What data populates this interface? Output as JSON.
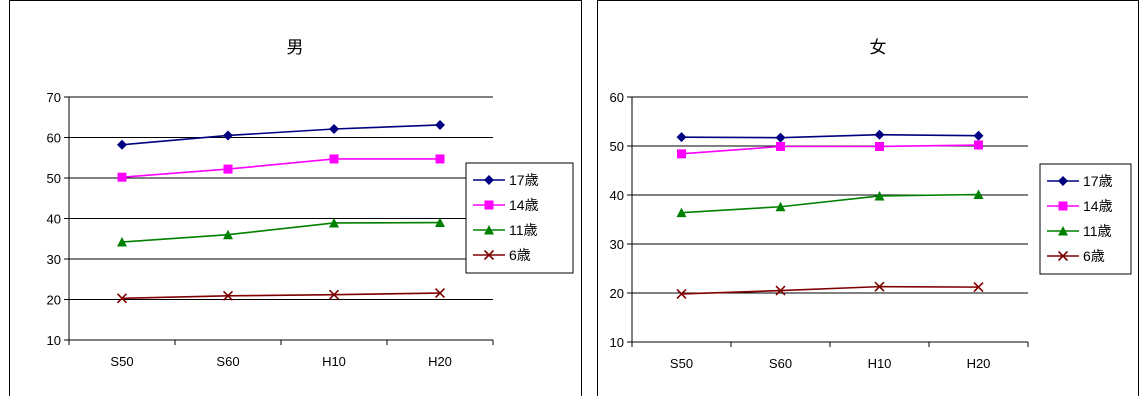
{
  "chart_data": [
    {
      "type": "line",
      "title": "男",
      "xlabel": "",
      "ylabel": "",
      "categories": [
        "S50",
        "S60",
        "H10",
        "H20"
      ],
      "ylim": [
        10,
        70
      ],
      "ytick_step": 10,
      "grid": true,
      "legend": "right",
      "series": [
        {
          "name": "17歳",
          "marker": "diamond",
          "color": "#000080",
          "values": [
            58.2,
            60.5,
            62.1,
            63.1
          ]
        },
        {
          "name": "14歳",
          "marker": "square",
          "color": "#FF00FF",
          "values": [
            50.2,
            52.2,
            54.7,
            54.7
          ]
        },
        {
          "name": "11歳",
          "marker": "triangle",
          "color": "#008000",
          "values": [
            34.2,
            36.0,
            38.9,
            39.0
          ]
        },
        {
          "name": "6歳",
          "marker": "x",
          "color": "#800000",
          "values": [
            20.3,
            20.9,
            21.2,
            21.6
          ]
        }
      ]
    },
    {
      "type": "line",
      "title": "女",
      "xlabel": "",
      "ylabel": "",
      "categories": [
        "S50",
        "S60",
        "H10",
        "H20"
      ],
      "ylim": [
        10,
        60
      ],
      "ytick_step": 10,
      "grid": true,
      "legend": "right",
      "series": [
        {
          "name": "17歳",
          "marker": "diamond",
          "color": "#000080",
          "values": [
            51.8,
            51.7,
            52.3,
            52.1
          ]
        },
        {
          "name": "14歳",
          "marker": "square",
          "color": "#FF00FF",
          "values": [
            48.4,
            49.9,
            49.9,
            50.2
          ]
        },
        {
          "name": "11歳",
          "marker": "triangle",
          "color": "#008000",
          "values": [
            36.4,
            37.6,
            39.8,
            40.1
          ]
        },
        {
          "name": "6歳",
          "marker": "x",
          "color": "#800000",
          "values": [
            19.8,
            20.5,
            21.3,
            21.2
          ]
        }
      ]
    }
  ]
}
